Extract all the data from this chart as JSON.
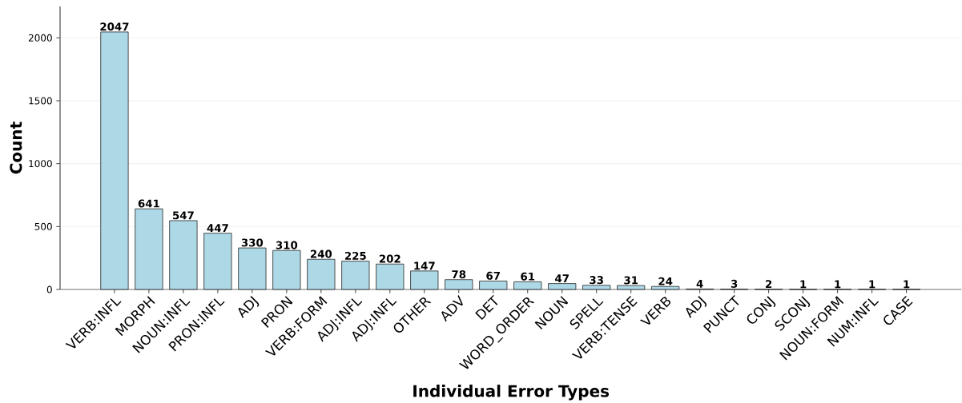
{
  "chart_data": {
    "type": "bar",
    "xlabel": "Individual Error Types",
    "ylabel": "Count",
    "categories": [
      "VERB:INFL",
      "MORPH",
      "NOUN:INFL",
      "PRON:INFL",
      "ADJ",
      "PRON",
      "VERB:FORM",
      "ADJ:INFL",
      "ADJ:INFL",
      "OTHER",
      "ADV",
      "DET",
      "WORD_ORDER",
      "NOUN",
      "SPELL",
      "VERB:TENSE",
      "VERB",
      "ADJ",
      "PUNCT",
      "CONJ",
      "SCONJ",
      "NOUN:FORM",
      "NUM:INFL",
      "CASE"
    ],
    "values": [
      2047,
      641,
      547,
      447,
      330,
      310,
      240,
      225,
      202,
      147,
      78,
      67,
      61,
      47,
      33,
      31,
      24,
      4,
      3,
      2,
      1,
      1,
      1,
      1
    ],
    "color": "#add8e6",
    "ylim": [
      0,
      2250
    ],
    "yticks": [
      0,
      500,
      1000,
      1500,
      2000
    ],
    "grid": "y",
    "data_labels": true
  }
}
